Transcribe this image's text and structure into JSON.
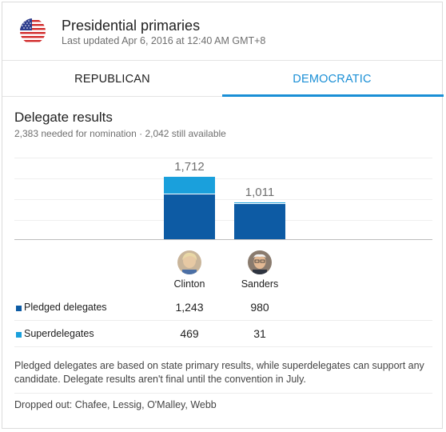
{
  "header": {
    "title": "Presidential primaries",
    "updated": "Last updated Apr 6, 2016 at 12:40 AM GMT+8",
    "flag_icon": "us-flag-icon"
  },
  "tabs": [
    {
      "label": "REPUBLICAN",
      "selected": false
    },
    {
      "label": "DEMOCRATIC",
      "selected": true
    }
  ],
  "section": {
    "title": "Delegate results",
    "subtitle": "2,383 needed for nomination · 2,042 still available"
  },
  "colors": {
    "pledged": "#0d5ba4",
    "super": "#1aa0dc",
    "accent": "#1a8fd6"
  },
  "chart_data": {
    "type": "bar",
    "stacked": true,
    "categories": [
      "Clinton",
      "Sanders"
    ],
    "series": [
      {
        "name": "Pledged delegates",
        "values": [
          1243,
          980
        ]
      },
      {
        "name": "Superdelegates",
        "values": [
          469,
          31
        ]
      }
    ],
    "totals_labels": [
      "1,712",
      "1,011"
    ],
    "ylim": [
      0,
      2383
    ]
  },
  "candidates": [
    {
      "name": "Clinton",
      "avatar_icon": "clinton-avatar"
    },
    {
      "name": "Sanders",
      "avatar_icon": "sanders-avatar"
    }
  ],
  "table": {
    "rows": [
      {
        "label": "Pledged delegates",
        "values": [
          "1,243",
          "980"
        ]
      },
      {
        "label": "Superdelegates",
        "values": [
          "469",
          "31"
        ]
      }
    ]
  },
  "note": "Pledged delegates are based on state primary results, while superdelegates can support any candidate. Delegate results aren't final until the convention in July.",
  "dropped_out": "Dropped out: Chafee, Lessig, O'Malley, Webb"
}
